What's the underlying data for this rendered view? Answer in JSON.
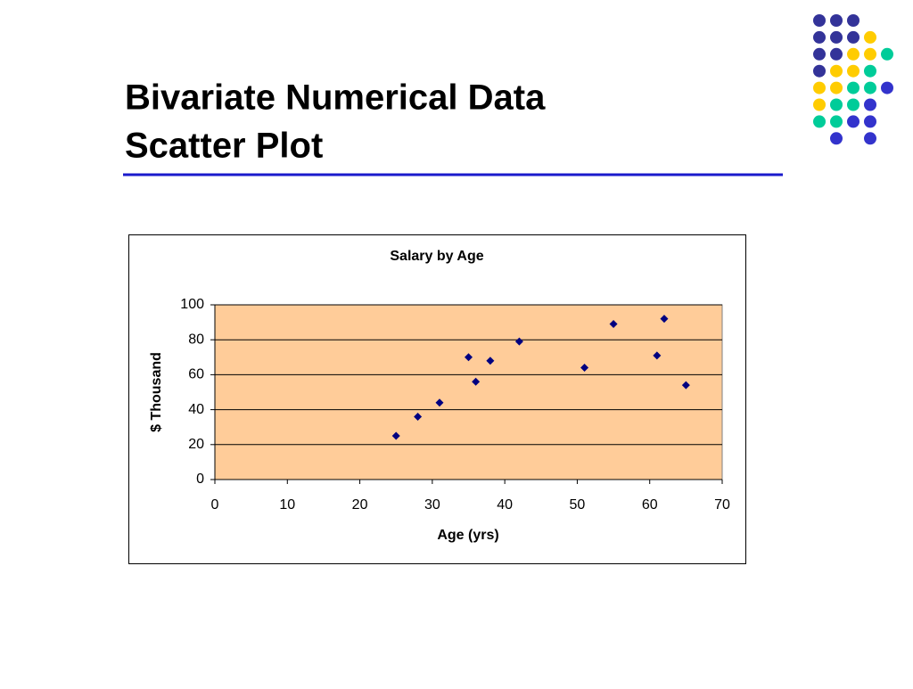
{
  "header": {
    "title_lines": [
      "Bivariate Numerical Data",
      "Scatter Plot"
    ]
  },
  "chart_data": {
    "type": "scatter",
    "title": "Salary by Age",
    "xlabel": "Age (yrs)",
    "ylabel": "$ Thousand",
    "x": [
      25,
      28,
      31,
      35,
      36,
      38,
      42,
      51,
      55,
      61,
      62,
      65
    ],
    "values": [
      25,
      36,
      44,
      70,
      56,
      68,
      79,
      64,
      89,
      71,
      92,
      54
    ],
    "color": "#000080",
    "xlim": [
      0,
      70
    ],
    "xticks": [
      0,
      10,
      20,
      30,
      40,
      50,
      60,
      70
    ],
    "ylim": [
      0,
      100
    ],
    "yticks": [
      0,
      20,
      40,
      60,
      80,
      100
    ],
    "grid": true,
    "plot_background": "#ffcc99"
  }
}
